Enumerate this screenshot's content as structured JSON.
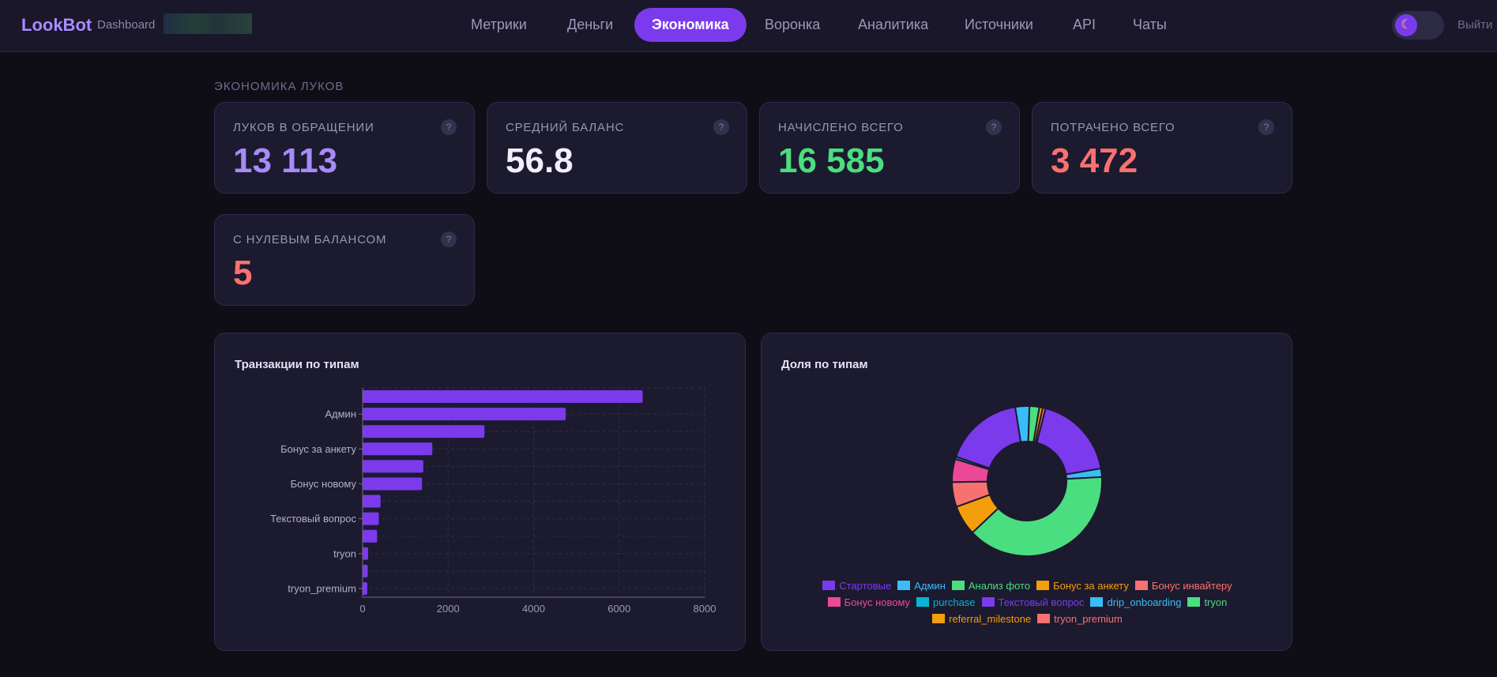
{
  "header": {
    "brand": "LookBot",
    "brand_sub": "Dashboard",
    "nav": [
      {
        "label": "Метрики",
        "name": "nav-metrics"
      },
      {
        "label": "Деньги",
        "name": "nav-money"
      },
      {
        "label": "Экономика",
        "name": "nav-economy",
        "active": true
      },
      {
        "label": "Воронка",
        "name": "nav-funnel"
      },
      {
        "label": "Аналитика",
        "name": "nav-analytics"
      },
      {
        "label": "Источники",
        "name": "nav-sources"
      },
      {
        "label": "API",
        "name": "nav-api"
      },
      {
        "label": "Чаты",
        "name": "nav-chats"
      }
    ],
    "theme_icon": "moon-icon",
    "logout": "Выйти"
  },
  "section": {
    "title": "ЭКОНОМИКА ЛУКОВ"
  },
  "kpis": [
    {
      "label": "ЛУКОВ В ОБРАЩЕНИИ",
      "value": "13 113",
      "color": "#a78bfa",
      "help": "?"
    },
    {
      "label": "СРЕДНИЙ БАЛАНС",
      "value": "56.8",
      "color": "#f1f0fa",
      "help": "?"
    },
    {
      "label": "НАЧИСЛЕНО ВСЕГО",
      "value": "16 585",
      "color": "#4ade80",
      "help": "?"
    },
    {
      "label": "ПОТРАЧЕНО ВСЕГО",
      "value": "3 472",
      "color": "#f87171",
      "help": "?"
    },
    {
      "label": "С НУЛЕВЫМ БАЛАНСОМ",
      "value": "5",
      "color": "#f87171",
      "help": "?"
    }
  ],
  "panels": {
    "bar_title": "Транзакции по типам",
    "pie_title": "Доля по типам"
  },
  "chart_data": [
    {
      "type": "bar",
      "orientation": "horizontal",
      "title": "Транзакции по типам",
      "categories": [
        "Стартовые",
        "Админ",
        "Анализ фото",
        "Бонус за анкету",
        "Бонус инвайтеру",
        "Бонус новому",
        "purchase",
        "Текстовый вопрос",
        "drip_onboarding",
        "tryon",
        "referral_milestone",
        "tryon_premium"
      ],
      "visible_tick_labels": [
        "Админ",
        "Бонус за анкету",
        "Бонус новому",
        "Текстовый вопрос",
        "tryon",
        "tryon_premium"
      ],
      "values": [
        6550,
        4750,
        2850,
        1630,
        1420,
        1390,
        420,
        380,
        340,
        130,
        120,
        110
      ],
      "xlim": [
        0,
        8000
      ],
      "xticks": [
        0,
        2000,
        4000,
        6000,
        8000
      ],
      "grid": true,
      "bar_color": "#7c3aed"
    },
    {
      "type": "pie",
      "variant": "donut",
      "title": "Доля по типам",
      "labels": [
        "Стартовые",
        "Админ",
        "Анализ фото",
        "Бонус за анкету",
        "Бонус инвайтеру",
        "Бонус новому",
        "purchase",
        "Текстовый вопрос",
        "drip_onboarding",
        "tryon",
        "referral_milestone",
        "tryon_premium"
      ],
      "values": [
        18.1,
        1.8,
        38.3,
        6.4,
        5.3,
        4.9,
        0.5,
        17.0,
        3.0,
        2.1,
        0.7,
        0.6
      ],
      "colors": [
        "#7c3aed",
        "#38bdf8",
        "#4ade80",
        "#f59e0b",
        "#f87171",
        "#ec4899",
        "#06b6d4",
        "#7c3aed",
        "#38bdf8",
        "#4ade80",
        "#f59e0b",
        "#f87171"
      ],
      "legend_position": "bottom",
      "legend_rows": [
        [
          0,
          1,
          2,
          3,
          4
        ],
        [
          5,
          6,
          7,
          8,
          9
        ],
        [
          10,
          11
        ]
      ]
    }
  ]
}
